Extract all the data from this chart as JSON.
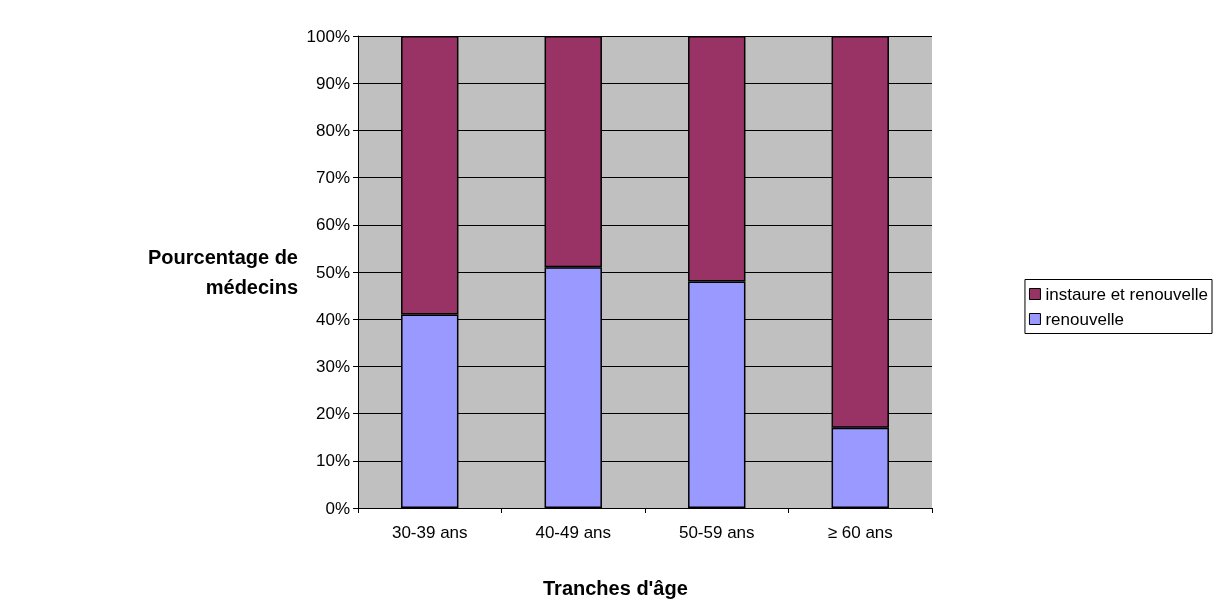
{
  "chart_data": {
    "type": "bar",
    "stacked": true,
    "xlabel": "Tranches d'âge",
    "ylabel": "Pourcentage de\nmédecins",
    "categories": [
      "30-39 ans",
      "40-49 ans",
      "50-59 ans",
      "≥ 60 ans"
    ],
    "series": [
      {
        "name": "renouvelle",
        "color": "#9999ff",
        "values": [
          41,
          51,
          48,
          17
        ]
      },
      {
        "name": "instaure et renouvelle",
        "color": "#993366",
        "values": [
          59,
          49,
          52,
          83
        ]
      }
    ],
    "ylim": [
      0,
      100
    ],
    "yticks": [
      {
        "value": 0,
        "label": "0%"
      },
      {
        "value": 10,
        "label": "10%"
      },
      {
        "value": 20,
        "label": "20%"
      },
      {
        "value": 30,
        "label": "30%"
      },
      {
        "value": 40,
        "label": "40%"
      },
      {
        "value": 50,
        "label": "50%"
      },
      {
        "value": 60,
        "label": "60%"
      },
      {
        "value": 70,
        "label": "70%"
      },
      {
        "value": 80,
        "label": "80%"
      },
      {
        "value": 90,
        "label": "90%"
      },
      {
        "value": 100,
        "label": "100%"
      }
    ],
    "grid": "y",
    "legend": "right"
  }
}
